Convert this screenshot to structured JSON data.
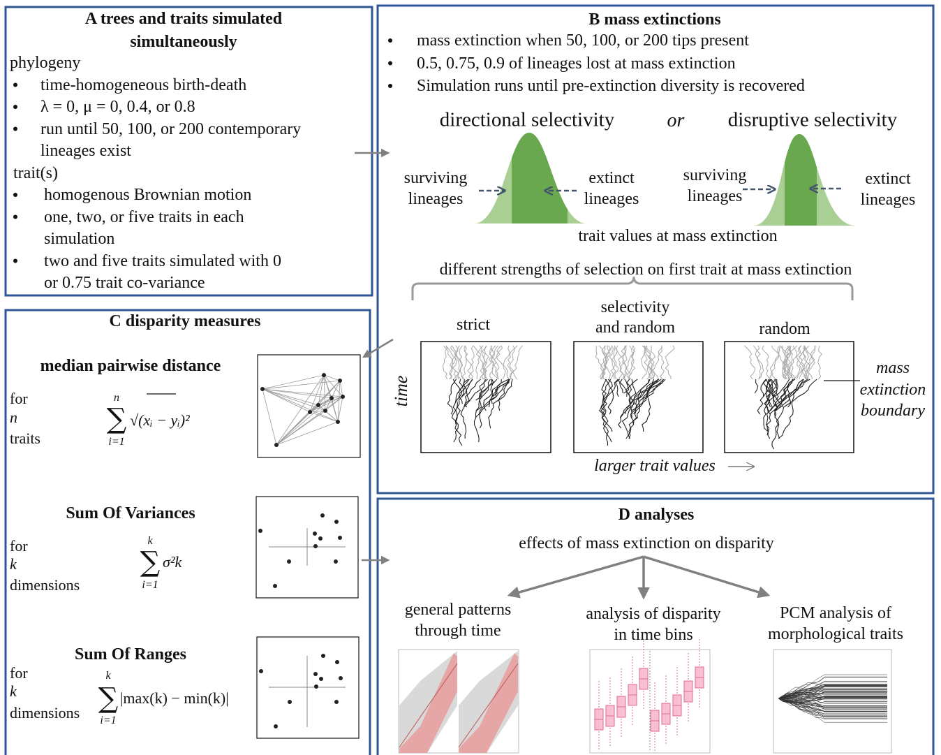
{
  "panel_a": {
    "title": [
      "A trees and traits simulated",
      "simultaneously"
    ],
    "groups": [
      {
        "heading": "phylogeny",
        "items": [
          [
            "time-homogeneous birth-death"
          ],
          [
            "λ  = 0, μ = 0, 0.4, or 0.8"
          ],
          [
            "run until 50, 100, or 200 contemporary",
            "lineages exist"
          ]
        ]
      },
      {
        "heading": "trait(s)",
        "items": [
          [
            "homogenous Brownian motion"
          ],
          [
            "one, two, or five traits in each",
            "simulation"
          ],
          [
            "two and five traits simulated with 0",
            "or 0.75 trait co-variance"
          ]
        ]
      }
    ]
  },
  "panel_b": {
    "title": "B mass extinctions",
    "items": [
      "mass extinction when 50, 100, or 200 tips present",
      "0.5, 0.75, 0.9 of lineages lost at mass extinction",
      "Simulation runs until pre-extinction diversity is recovered"
    ],
    "selectivity": {
      "directional": "directional selectivity",
      "or": "or",
      "disruptive": "disruptive selectivity",
      "surviving": [
        "surviving",
        "lineages"
      ],
      "extinct": [
        "extinct",
        "lineages"
      ],
      "axis_label": "trait values at mass extinction"
    },
    "strengths": {
      "title": "different strengths of selection on first trait at mass extinction",
      "labels": [
        [
          "strict"
        ],
        [
          "selectivity",
          "and random"
        ],
        [
          "random"
        ]
      ],
      "time_label": "time",
      "boundary_label": [
        "mass",
        "extinction",
        "boundary"
      ],
      "x_label": "larger trait values"
    }
  },
  "panel_c": {
    "title": "C disparity measures",
    "measures": [
      {
        "name": "median pairwise distance",
        "desc": [
          "for",
          "n",
          "traits"
        ],
        "sum_symbol": "∑",
        "upper": "n",
        "lower": "i=1",
        "body": "√(xᵢ − yᵢ)²"
      },
      {
        "name": "Sum Of Variances",
        "desc": [
          "for",
          "k",
          "dimensions"
        ],
        "sum_symbol": "∑",
        "upper": "k",
        "lower": "i=1",
        "body": "σ²k"
      },
      {
        "name": "Sum Of Ranges",
        "desc": [
          "for",
          "k",
          "dimensions"
        ],
        "sum_symbol": "∑",
        "upper": "k",
        "lower": "i=1",
        "body": "|max(k)  − min(k)|"
      }
    ]
  },
  "panel_d": {
    "title": "D analyses",
    "subtitle": "effects of mass extinction on disparity",
    "analyses": [
      [
        "general patterns",
        "through time"
      ],
      [
        "analysis of disparity",
        "in time bins"
      ],
      [
        "PCM analysis of",
        "morphological traits"
      ]
    ]
  }
}
